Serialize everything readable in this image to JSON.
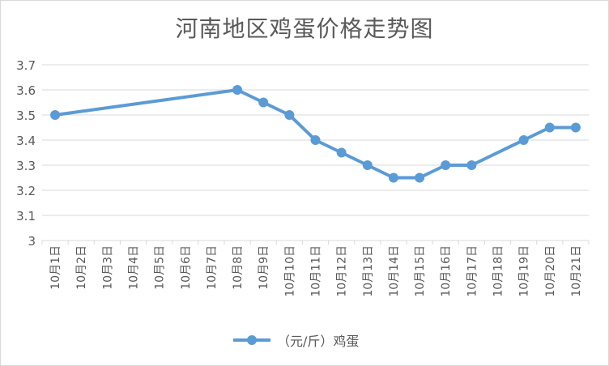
{
  "chart_data": {
    "type": "line",
    "title": "河南地区鸡蛋价格走势图",
    "categories": [
      "10月1日",
      "10月2日",
      "10月3日",
      "10月4日",
      "10月5日",
      "10月6日",
      "10月7日",
      "10月8日",
      "10月9日",
      "10月10日",
      "10月11日",
      "10月12日",
      "10月13日",
      "10月14日",
      "10月15日",
      "10月16日",
      "10月17日",
      "10月18日",
      "10月19日",
      "10月20日",
      "10月21日"
    ],
    "series": [
      {
        "name": "（元/斤）鸡蛋",
        "color": "#5b9bd5",
        "values": [
          3.5,
          null,
          null,
          null,
          null,
          null,
          null,
          3.6,
          3.55,
          3.5,
          3.4,
          3.35,
          3.3,
          3.25,
          3.25,
          3.3,
          3.3,
          null,
          3.4,
          3.45,
          3.45
        ]
      }
    ],
    "ylim": [
      3,
      3.7
    ],
    "yticks": [
      "3",
      "3.1",
      "3.2",
      "3.3",
      "3.4",
      "3.5",
      "3.6",
      "3.7"
    ],
    "grid": true,
    "legend_position": "bottom",
    "gridline_color": "#d9d9d9",
    "text_color": "#595959"
  }
}
